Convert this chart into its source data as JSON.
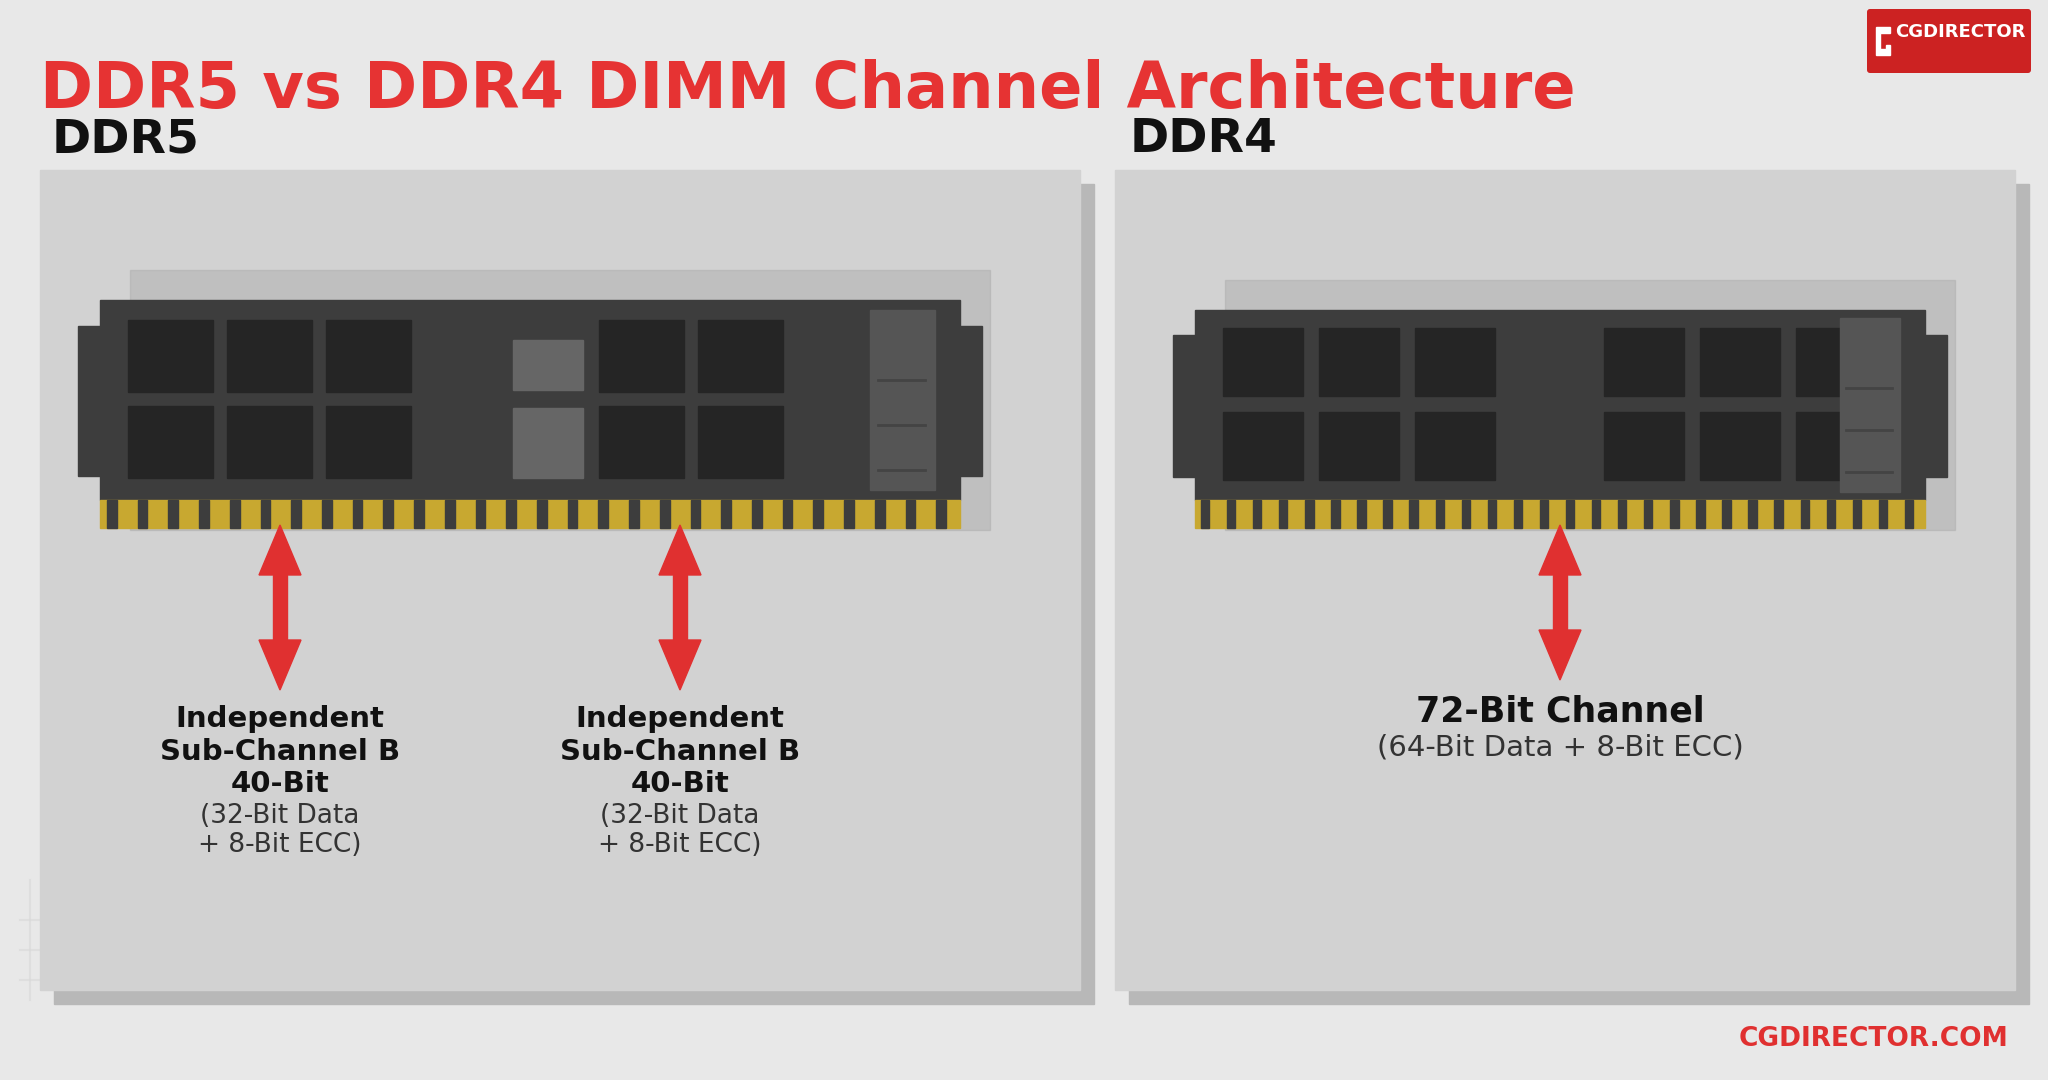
{
  "title": "DDR5 vs DDR4 DIMM Channel Architecture",
  "title_color": "#e63333",
  "bg_color": "#e8e8e8",
  "panel_bg": "#d2d2d2",
  "panel_shadow": "#c0c0c0",
  "ddr5_label": "DDR5",
  "ddr4_label": "DDR4",
  "ddr5_sub1_line1": "Independent",
  "ddr5_sub1_line2": "Sub-Channel B",
  "ddr5_sub1_line3": "40-Bit",
  "ddr5_sub1_line4": "(32-Bit Data",
  "ddr5_sub1_line5": "+ 8-Bit ECC)",
  "ddr5_sub2_line1": "Independent",
  "ddr5_sub2_line2": "Sub-Channel B",
  "ddr5_sub2_line3": "40-Bit",
  "ddr5_sub2_line4": "(32-Bit Data",
  "ddr5_sub2_line5": "+ 8-Bit ECC)",
  "ddr4_ch_bold": "72-Bit Channel",
  "ddr4_ch_normal": "(64-Bit Data + 8-Bit ECC)",
  "arrow_color": "#e03030",
  "ram_body": "#3d3d3d",
  "ram_chip_dark": "#252525",
  "ram_chip_med": "#666666",
  "ram_chip_light": "#888888",
  "ram_gold": "#c8a830",
  "ram_fin": "#555555",
  "brand_text": "CGDIRECTOR.COM",
  "brand_color": "#e03030",
  "logo_bg": "#cc2222",
  "circuit_color": "#d8d8d8"
}
